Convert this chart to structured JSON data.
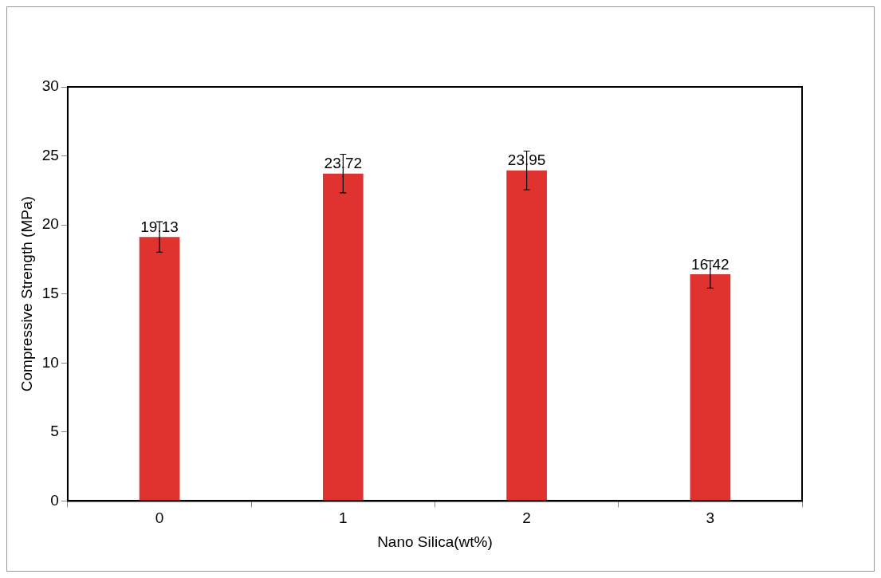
{
  "chart_data": {
    "type": "bar",
    "xlabel": "Nano Silica(wt%)",
    "ylabel": "Compressive Strength (MPa)",
    "categories": [
      "0",
      "1",
      "2",
      "3"
    ],
    "values": [
      19.13,
      23.72,
      23.95,
      16.42
    ],
    "errors": [
      1.1,
      1.4,
      1.4,
      1.0
    ],
    "color": "#e0332f",
    "ylim": [
      0,
      30
    ],
    "yticks": [
      0,
      5,
      10,
      15,
      20,
      25,
      30
    ],
    "data_labels": true,
    "grid": false,
    "legend": false
  }
}
